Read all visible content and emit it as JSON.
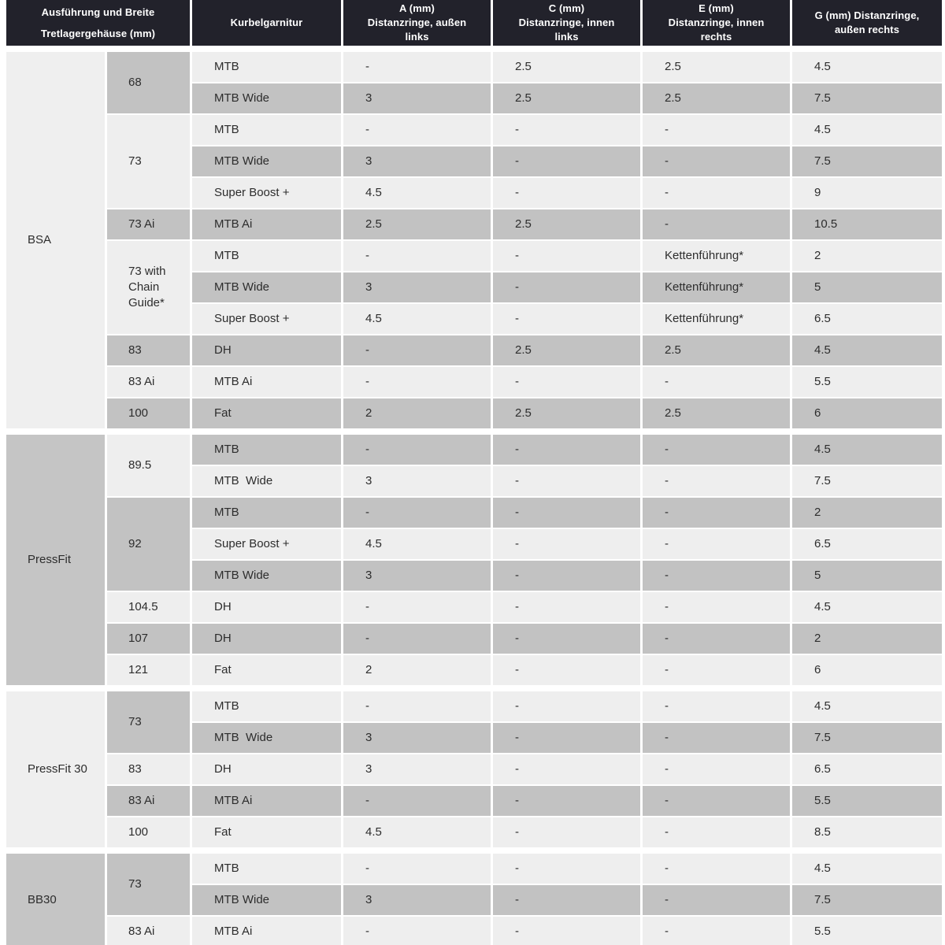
{
  "header": {
    "columns": [
      {
        "lines": [
          "Ausführung und Breite",
          "Tretlagergehäuse (mm)"
        ]
      },
      {
        "lines": [
          "Kurbelgarnitur"
        ]
      },
      {
        "lines": [
          "A (mm)",
          "Distanzringe, außen",
          "links"
        ]
      },
      {
        "lines": [
          "C (mm)",
          "Distanzringe, innen",
          "links"
        ]
      },
      {
        "lines": [
          "E (mm)",
          "Distanzringe, innen",
          "rechts"
        ]
      },
      {
        "lines": [
          "G (mm) Distanzringe,",
          "außen rechts"
        ]
      }
    ]
  },
  "colors": {
    "header_bg": "#22222b",
    "header_text": "#ffffff",
    "row_light": "#eeeeee",
    "row_gray": "#c2c2c2",
    "text": "#2d2d2d"
  },
  "sections": [
    {
      "label": "BSA",
      "label_shade": "light",
      "groups": [
        {
          "width": "68",
          "shade": "gray",
          "rows": [
            {
              "crank": "MTB",
              "a": "-",
              "c": "2.5",
              "e": "2.5",
              "g": "4.5",
              "shade": "light"
            },
            {
              "crank": "MTB Wide",
              "a": "3",
              "c": "2.5",
              "e": "2.5",
              "g": "7.5",
              "shade": "gray"
            }
          ]
        },
        {
          "width": "73",
          "shade": "light",
          "rows": [
            {
              "crank": "MTB",
              "a": "-",
              "c": "-",
              "e": "-",
              "g": "4.5",
              "shade": "light"
            },
            {
              "crank": "MTB Wide",
              "a": "3",
              "c": "-",
              "e": "-",
              "g": "7.5",
              "shade": "gray"
            },
            {
              "crank": "Super Boost +",
              "a": "4.5",
              "c": "-",
              "e": "-",
              "g": "9",
              "shade": "light"
            }
          ]
        },
        {
          "width": "73 Ai",
          "shade": "gray",
          "rows": [
            {
              "crank": "MTB Ai",
              "a": "2.5",
              "c": "2.5",
              "e": "-",
              "g": "10.5",
              "shade": "gray"
            }
          ]
        },
        {
          "width": "73 with Chain Guide*",
          "shade": "light",
          "rows": [
            {
              "crank": "MTB",
              "a": "-",
              "c": "-",
              "e": "Kettenführung*",
              "g": "2",
              "shade": "light"
            },
            {
              "crank": "MTB Wide",
              "a": "3",
              "c": "-",
              "e": "Kettenführung*",
              "g": "5",
              "shade": "gray"
            },
            {
              "crank": "Super Boost +",
              "a": "4.5",
              "c": "-",
              "e": "Kettenführung*",
              "g": "6.5",
              "shade": "light"
            }
          ]
        },
        {
          "width": "83",
          "shade": "gray",
          "rows": [
            {
              "crank": "DH",
              "a": "-",
              "c": "2.5",
              "e": "2.5",
              "g": "4.5",
              "shade": "gray"
            }
          ]
        },
        {
          "width": "83 Ai",
          "shade": "light",
          "rows": [
            {
              "crank": "MTB Ai",
              "a": "-",
              "c": "-",
              "e": "-",
              "g": "5.5",
              "shade": "light"
            }
          ]
        },
        {
          "width": "100",
          "shade": "gray",
          "rows": [
            {
              "crank": "Fat",
              "a": "2",
              "c": "2.5",
              "e": "2.5",
              "g": "6",
              "shade": "gray"
            }
          ]
        }
      ]
    },
    {
      "label": "PressFit",
      "label_shade": "gray",
      "groups": [
        {
          "width": "89.5",
          "shade": "light",
          "rows": [
            {
              "crank": "MTB",
              "a": "-",
              "c": "-",
              "e": "-",
              "g": "4.5",
              "shade": "gray"
            },
            {
              "crank": "MTB  Wide",
              "a": "3",
              "c": "-",
              "e": "-",
              "g": "7.5",
              "shade": "light"
            }
          ]
        },
        {
          "width": "92",
          "shade": "gray",
          "rows": [
            {
              "crank": "MTB",
              "a": "-",
              "c": "-",
              "e": "-",
              "g": "2",
              "shade": "gray"
            },
            {
              "crank": "Super Boost +",
              "a": "4.5",
              "c": "-",
              "e": "-",
              "g": "6.5",
              "shade": "light"
            },
            {
              "crank": "MTB Wide",
              "a": "3",
              "c": "-",
              "e": "-",
              "g": "5",
              "shade": "gray"
            }
          ]
        },
        {
          "width": "104.5",
          "shade": "light",
          "rows": [
            {
              "crank": "DH",
              "a": "-",
              "c": "-",
              "e": "-",
              "g": "4.5",
              "shade": "light"
            }
          ]
        },
        {
          "width": "107",
          "shade": "gray",
          "rows": [
            {
              "crank": "DH",
              "a": "-",
              "c": "-",
              "e": "-",
              "g": "2",
              "shade": "gray"
            }
          ]
        },
        {
          "width": "121",
          "shade": "light",
          "rows": [
            {
              "crank": "Fat",
              "a": "2",
              "c": "-",
              "e": "-",
              "g": "6",
              "shade": "light"
            }
          ]
        }
      ]
    },
    {
      "label": "PressFit 30",
      "label_shade": "light",
      "groups": [
        {
          "width": "73",
          "shade": "gray",
          "rows": [
            {
              "crank": "MTB",
              "a": "-",
              "c": "-",
              "e": "-",
              "g": "4.5",
              "shade": "light"
            },
            {
              "crank": "MTB  Wide",
              "a": "3",
              "c": "-",
              "e": "-",
              "g": "7.5",
              "shade": "gray"
            }
          ]
        },
        {
          "width": "83",
          "shade": "light",
          "rows": [
            {
              "crank": "DH",
              "a": "3",
              "c": "-",
              "e": "-",
              "g": "6.5",
              "shade": "light"
            }
          ]
        },
        {
          "width": "83 Ai",
          "shade": "gray",
          "rows": [
            {
              "crank": "MTB Ai",
              "a": "-",
              "c": "-",
              "e": "-",
              "g": "5.5",
              "shade": "gray"
            }
          ]
        },
        {
          "width": "100",
          "shade": "light",
          "rows": [
            {
              "crank": "Fat",
              "a": "4.5",
              "c": "-",
              "e": "-",
              "g": "8.5",
              "shade": "light"
            }
          ]
        }
      ]
    },
    {
      "label": "BB30",
      "label_shade": "gray",
      "groups": [
        {
          "width": "73",
          "shade": "gray",
          "rows": [
            {
              "crank": "MTB",
              "a": "-",
              "c": "-",
              "e": "-",
              "g": "4.5",
              "shade": "light"
            },
            {
              "crank": "MTB Wide",
              "a": "3",
              "c": "-",
              "e": "-",
              "g": "7.5",
              "shade": "gray"
            }
          ]
        },
        {
          "width": "83 Ai",
          "shade": "light",
          "rows": [
            {
              "crank": "MTB Ai",
              "a": "-",
              "c": "-",
              "e": "-",
              "g": "5.5",
              "shade": "light"
            }
          ]
        }
      ]
    }
  ]
}
